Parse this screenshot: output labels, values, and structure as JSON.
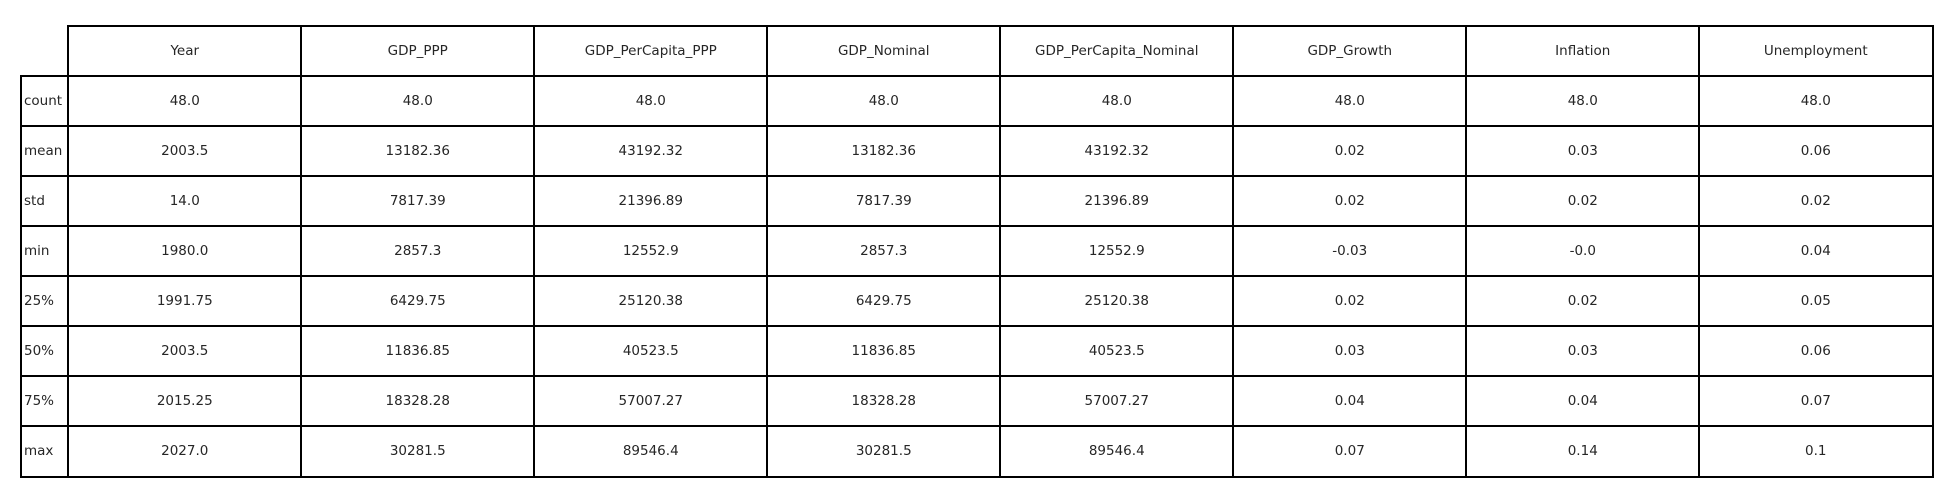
{
  "chart_data": {
    "type": "table",
    "columns": [
      "Year",
      "GDP_PPP",
      "GDP_PerCapita_PPP",
      "GDP_Nominal",
      "GDP_PerCapita_Nominal",
      "GDP_Growth",
      "Inflation",
      "Unemployment"
    ],
    "rows": [
      {
        "label": "count",
        "values": [
          "48.0",
          "48.0",
          "48.0",
          "48.0",
          "48.0",
          "48.0",
          "48.0",
          "48.0"
        ]
      },
      {
        "label": "mean",
        "values": [
          "2003.5",
          "13182.36",
          "43192.32",
          "13182.36",
          "43192.32",
          "0.02",
          "0.03",
          "0.06"
        ]
      },
      {
        "label": "std",
        "values": [
          "14.0",
          "7817.39",
          "21396.89",
          "7817.39",
          "21396.89",
          "0.02",
          "0.02",
          "0.02"
        ]
      },
      {
        "label": "min",
        "values": [
          "1980.0",
          "2857.3",
          "12552.9",
          "2857.3",
          "12552.9",
          "-0.03",
          "-0.0",
          "0.04"
        ]
      },
      {
        "label": "25%",
        "values": [
          "1991.75",
          "6429.75",
          "25120.38",
          "6429.75",
          "25120.38",
          "0.02",
          "0.02",
          "0.05"
        ]
      },
      {
        "label": "50%",
        "values": [
          "2003.5",
          "11836.85",
          "40523.5",
          "11836.85",
          "40523.5",
          "0.03",
          "0.03",
          "0.06"
        ]
      },
      {
        "label": "75%",
        "values": [
          "2015.25",
          "18328.28",
          "57007.27",
          "18328.28",
          "57007.27",
          "0.04",
          "0.04",
          "0.07"
        ]
      },
      {
        "label": "max",
        "values": [
          "2027.0",
          "30281.5",
          "89546.4",
          "30281.5",
          "89546.4",
          "0.07",
          "0.14",
          "0.1"
        ]
      }
    ]
  }
}
